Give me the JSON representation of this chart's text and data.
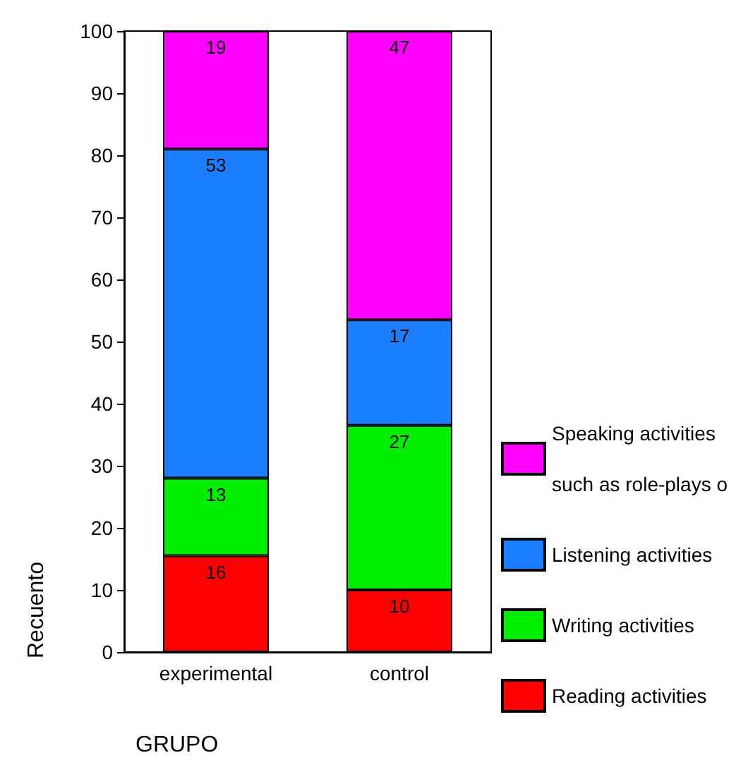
{
  "chart_data": {
    "type": "bar",
    "stacked": true,
    "xlabel": "GRUPO",
    "ylabel": "Recuento",
    "categories": [
      "experimental",
      "control"
    ],
    "series": [
      {
        "name": "Reading activities",
        "color": "#ff0000",
        "values": [
          15.5,
          10
        ],
        "value_labels": [
          "16",
          "10"
        ]
      },
      {
        "name": "Writing activities",
        "color": "#00ee00",
        "values": [
          12.5,
          26.5
        ],
        "value_labels": [
          "13",
          "27"
        ]
      },
      {
        "name": "Listening activities",
        "color": "#1a7fff",
        "values": [
          53,
          17
        ],
        "value_labels": [
          "53",
          "17"
        ]
      },
      {
        "name": "Speaking activities such as role-plays o",
        "color": "#ff00ff",
        "values": [
          19,
          46.5
        ],
        "value_labels": [
          "19",
          "47"
        ]
      }
    ],
    "ylim": [
      0,
      100
    ],
    "yticks": [
      0,
      10,
      20,
      30,
      40,
      50,
      60,
      70,
      80,
      90,
      100
    ],
    "grid": false,
    "legend": "right"
  }
}
